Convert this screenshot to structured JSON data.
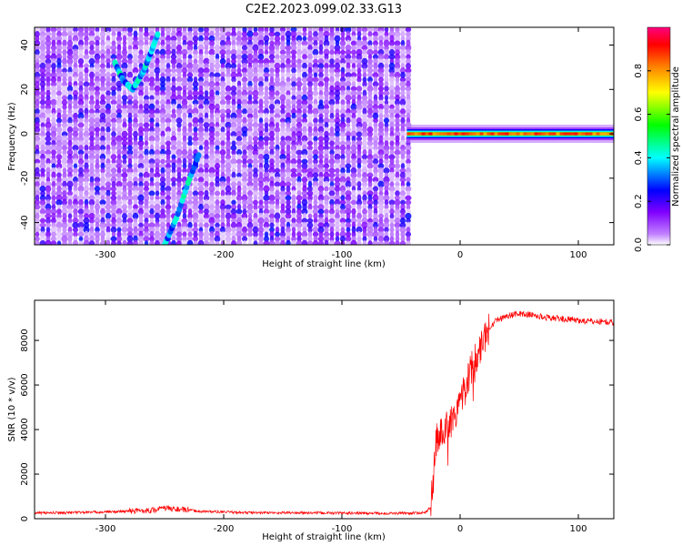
{
  "title": "C2E2.2023.099.02.33.G13",
  "chart_data": [
    {
      "type": "heatmap",
      "xlabel": "Height of straight line (km)",
      "ylabel": "Frequency (Hz)",
      "xlim": [
        -360,
        130
      ],
      "ylim": [
        -50,
        48
      ],
      "x_ticks": [
        -300,
        -200,
        -100,
        0,
        100
      ],
      "y_ticks": [
        -40,
        -20,
        0,
        20,
        40
      ],
      "colorbar": {
        "label": "Normalized spectral amplitude",
        "range": [
          0,
          1
        ],
        "ticks": [
          0.0,
          0.2,
          0.4,
          0.6,
          0.8
        ],
        "colors": [
          "#ffffff",
          "#c080ff",
          "#8000ff",
          "#0000ff",
          "#00ffff",
          "#00ff00",
          "#ffff00",
          "#ff8000",
          "#ff0000",
          "#ff0080"
        ]
      },
      "noise_region_km": [
        -360,
        -45
      ],
      "features": [
        {
          "name": "descending trace",
          "points": [
            [
              -292,
              32
            ],
            [
              -285,
              24
            ],
            [
              -277,
              20
            ],
            [
              -268,
              28
            ],
            [
              -262,
              36
            ],
            [
              -255,
              46
            ]
          ]
        },
        {
          "name": "ascending trace",
          "points": [
            [
              -250,
              -50
            ],
            [
              -240,
              -38
            ],
            [
              -230,
              -22
            ],
            [
              -220,
              -8
            ]
          ]
        },
        {
          "name": "carrier line",
          "x_range_km": [
            -45,
            130
          ],
          "frequency_hz": 0,
          "amplitude": 0.85
        }
      ]
    },
    {
      "type": "line",
      "xlabel": "Height of straight line (km)",
      "ylabel": "SNR (10 * v/v)",
      "xlim": [
        -360,
        130
      ],
      "ylim": [
        0,
        9800
      ],
      "x_ticks": [
        -300,
        -200,
        -100,
        0,
        100
      ],
      "y_ticks": [
        0,
        2000,
        4000,
        6000,
        8000
      ],
      "series_color": "#ff0000",
      "series": [
        {
          "x": [
            -360,
            -300,
            -260,
            -250,
            -220,
            -180,
            -120,
            -60,
            -30,
            -25,
            -22,
            -20,
            -15,
            -10,
            -5,
            0,
            5,
            10,
            15,
            20,
            25,
            30,
            40,
            50,
            60,
            70,
            80,
            90,
            100,
            110,
            120,
            130
          ],
          "y": [
            250,
            300,
            380,
            480,
            330,
            270,
            260,
            240,
            260,
            500,
            2200,
            3600,
            3900,
            4200,
            4600,
            5400,
            6000,
            6800,
            7500,
            8100,
            8600,
            8900,
            9100,
            9200,
            9150,
            9050,
            9000,
            8950,
            8900,
            8850,
            8850,
            8800
          ]
        }
      ]
    }
  ]
}
